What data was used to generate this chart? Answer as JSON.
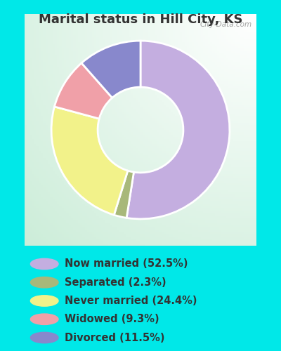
{
  "title": "Marital status in Hill City, KS",
  "slices": [
    {
      "label": "Now married (52.5%)",
      "value": 52.5,
      "color": "#c4aee0"
    },
    {
      "label": "Separated (2.3%)",
      "value": 2.3,
      "color": "#a8b87a"
    },
    {
      "label": "Never married (24.4%)",
      "value": 24.4,
      "color": "#f2f28a"
    },
    {
      "label": "Widowed (9.3%)",
      "value": 9.3,
      "color": "#f0a0a8"
    },
    {
      "label": "Divorced (11.5%)",
      "value": 11.5,
      "color": "#8888cc"
    }
  ],
  "bg_cyan": "#00e8e8",
  "bg_chart_color": "#d0edd8",
  "title_color": "#333333",
  "title_fontsize": 13,
  "watermark": "City-Data.com",
  "legend_fontsize": 10.5,
  "donut_width": 0.52
}
